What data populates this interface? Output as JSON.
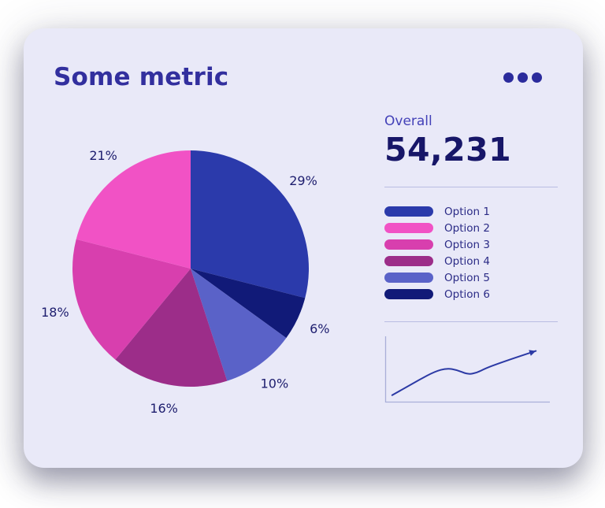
{
  "card": {
    "title": "Some metric"
  },
  "menu": {
    "icon": "kebab-menu-icon"
  },
  "overall": {
    "label": "Overall",
    "value": "54,231"
  },
  "legend": {
    "items": [
      {
        "label": "Option 1",
        "color": "#2b3aab"
      },
      {
        "label": "Option 2",
        "color": "#f152c5"
      },
      {
        "label": "Option 3",
        "color": "#d83fae"
      },
      {
        "label": "Option 4",
        "color": "#9c2d89"
      },
      {
        "label": "Option 5",
        "color": "#5a62c8"
      },
      {
        "label": "Option 6",
        "color": "#111a78"
      }
    ]
  },
  "chart_data": [
    {
      "type": "pie",
      "title": "Some metric",
      "start_angle_deg": -90,
      "direction": "clockwise",
      "label_format": "percent",
      "legend_position": "right",
      "slices": [
        {
          "label": "Option 1",
          "percent": 29,
          "color": "#2b3aab"
        },
        {
          "label": "Option 6",
          "percent": 6,
          "color": "#111a78"
        },
        {
          "label": "Option 5",
          "percent": 10,
          "color": "#5a62c8"
        },
        {
          "label": "Option 4",
          "percent": 16,
          "color": "#9c2d89"
        },
        {
          "label": "Option 3",
          "percent": 18,
          "color": "#d83fae"
        },
        {
          "label": "Option 2",
          "percent": 21,
          "color": "#f152c5"
        }
      ]
    },
    {
      "type": "line",
      "name": "trend",
      "color": "#2c3aa5",
      "axes_color": "#a9aed8",
      "arrow": true,
      "points": [
        [
          0.02,
          0.97
        ],
        [
          0.1,
          0.85
        ],
        [
          0.2,
          0.7
        ],
        [
          0.3,
          0.56
        ],
        [
          0.38,
          0.5
        ],
        [
          0.45,
          0.53
        ],
        [
          0.52,
          0.61
        ],
        [
          0.58,
          0.58
        ],
        [
          0.64,
          0.5
        ],
        [
          0.72,
          0.42
        ],
        [
          0.82,
          0.33
        ],
        [
          0.97,
          0.2
        ]
      ]
    }
  ],
  "colors": {
    "card_bg": "#e9e9f8",
    "title": "#322f9e",
    "overall_value": "#171668",
    "accent": "#2b3aab"
  }
}
